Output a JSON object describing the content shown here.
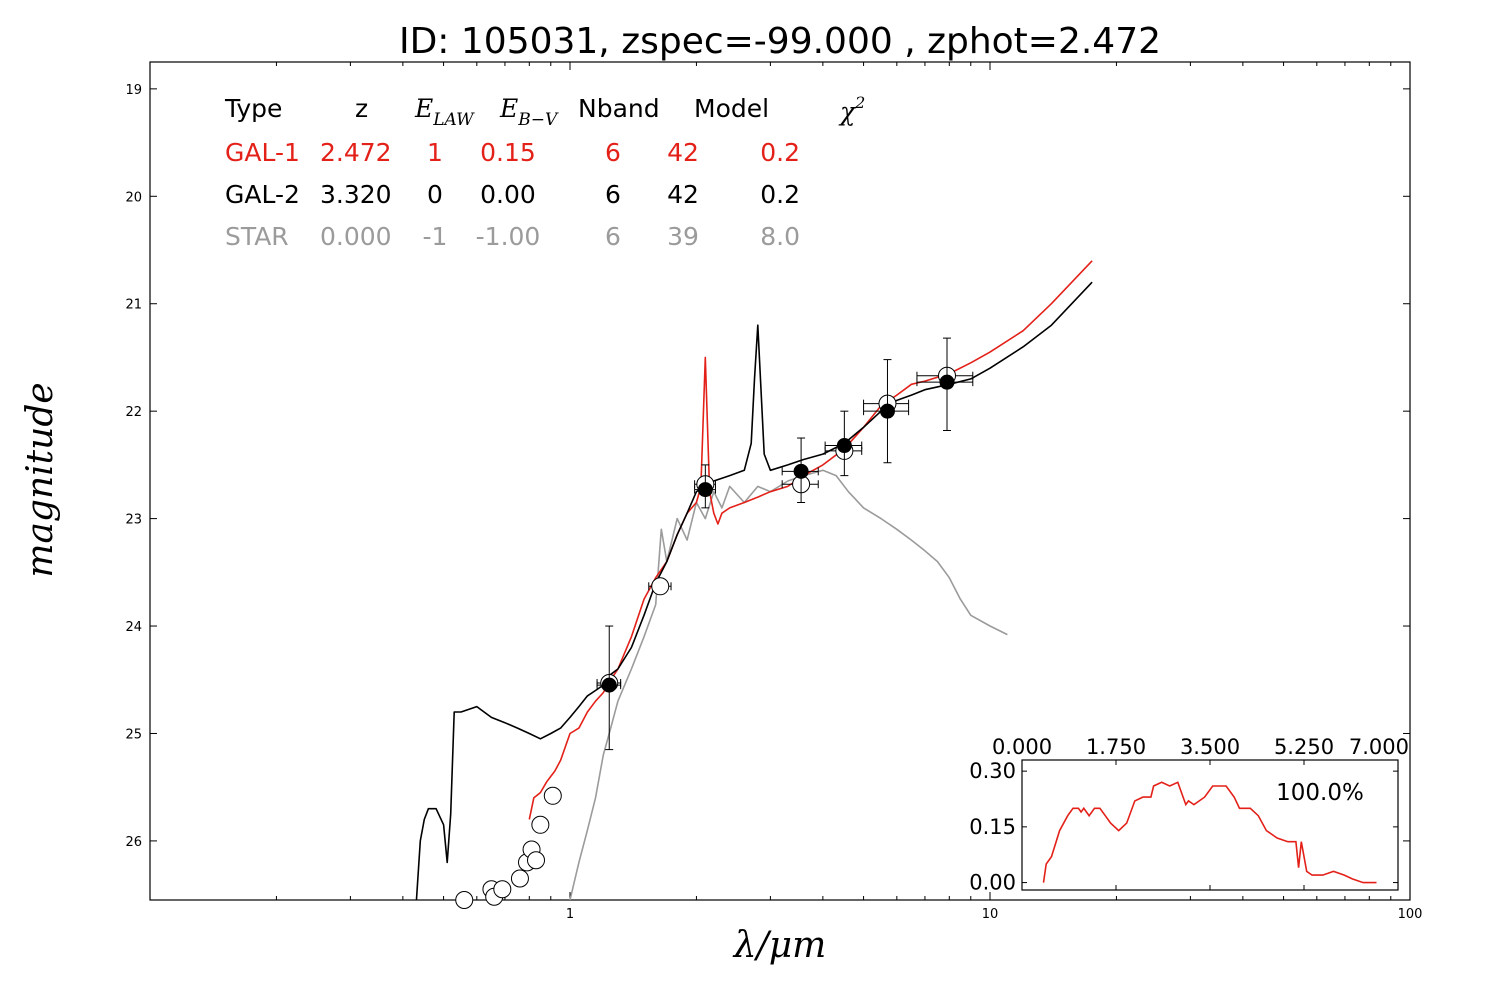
{
  "chart_data": {
    "type": "scatter",
    "title": "ID:  105031, zspec=-99.000 , zphot=2.472",
    "xlabel": "λ/μm",
    "ylabel": "magnitude",
    "x_scale": "log",
    "xlim": [
      0.1,
      100
    ],
    "ylim": [
      26.55,
      18.75
    ],
    "x_ticks": [
      "1",
      "10",
      "100"
    ],
    "y_ticks": [
      "19",
      "20",
      "21",
      "22",
      "23",
      "24",
      "25",
      "26"
    ],
    "legend_table": {
      "headers": [
        "Type",
        "z",
        "E_LAW",
        "E_B−V",
        "Nband",
        "Model",
        "χ²"
      ],
      "rows": [
        {
          "cells": [
            "GAL-1",
            "2.472",
            "1",
            "0.15",
            "6",
            "42",
            "0.2"
          ],
          "color": "#e32119"
        },
        {
          "cells": [
            "GAL-2",
            "3.320",
            "0",
            "0.00",
            "6",
            "42",
            "0.2"
          ],
          "color": "#000000"
        },
        {
          "cells": [
            "STAR",
            "0.000",
            "-1",
            "-1.00",
            "6",
            "39",
            "8.0"
          ],
          "color": "#9b9b9b"
        }
      ]
    },
    "series": [
      {
        "name": "GAL-1",
        "color": "#e32119",
        "kind": "line",
        "x": [
          0.8,
          0.82,
          0.85,
          0.88,
          0.9,
          0.92,
          0.95,
          1.0,
          1.05,
          1.1,
          1.15,
          1.2,
          1.25,
          1.3,
          1.4,
          1.5,
          1.6,
          1.7,
          1.8,
          1.9,
          2.0,
          2.05,
          2.1,
          2.15,
          2.2,
          2.25,
          2.3,
          2.4,
          2.6,
          2.8,
          3.0,
          3.3,
          3.6,
          4.0,
          4.5,
          5.0,
          5.5,
          6.0,
          6.5,
          7.0,
          8.0,
          9.0,
          10.0,
          12.0,
          14.0,
          17.5
        ],
        "y": [
          25.8,
          25.6,
          25.55,
          25.45,
          25.4,
          25.35,
          25.25,
          25.0,
          24.95,
          24.8,
          24.7,
          24.62,
          24.5,
          24.4,
          24.1,
          23.75,
          23.55,
          23.4,
          23.15,
          22.95,
          22.85,
          22.7,
          21.5,
          22.75,
          22.95,
          23.05,
          22.95,
          22.9,
          22.85,
          22.8,
          22.75,
          22.7,
          22.6,
          22.5,
          22.35,
          22.15,
          21.95,
          21.85,
          21.75,
          21.72,
          21.65,
          21.55,
          21.45,
          21.25,
          21.0,
          20.6
        ]
      },
      {
        "name": "GAL-2",
        "color": "#000000",
        "kind": "line",
        "x": [
          0.43,
          0.44,
          0.45,
          0.46,
          0.48,
          0.5,
          0.51,
          0.52,
          0.53,
          0.55,
          0.6,
          0.65,
          0.7,
          0.75,
          0.8,
          0.85,
          0.9,
          0.95,
          1.0,
          1.05,
          1.1,
          1.15,
          1.2,
          1.25,
          1.3,
          1.4,
          1.5,
          1.6,
          1.7,
          1.8,
          1.9,
          2.0,
          2.1,
          2.2,
          2.4,
          2.6,
          2.7,
          2.75,
          2.8,
          2.85,
          2.9,
          3.0,
          3.3,
          3.6,
          4.0,
          4.5,
          5.0,
          5.5,
          6.0,
          6.5,
          7.0,
          8.0,
          9.0,
          10.0,
          12.0,
          14.0,
          17.5
        ],
        "y": [
          26.6,
          26.0,
          25.8,
          25.7,
          25.7,
          25.85,
          26.2,
          25.75,
          24.8,
          24.8,
          24.75,
          24.85,
          24.9,
          24.95,
          25.0,
          25.05,
          25.0,
          24.95,
          24.85,
          24.75,
          24.65,
          24.6,
          24.55,
          24.45,
          24.4,
          24.2,
          23.9,
          23.6,
          23.4,
          23.15,
          22.95,
          22.75,
          22.7,
          22.65,
          22.6,
          22.55,
          22.3,
          21.7,
          21.2,
          21.8,
          22.4,
          22.55,
          22.5,
          22.45,
          22.4,
          22.3,
          22.15,
          22.0,
          21.9,
          21.85,
          21.8,
          21.75,
          21.7,
          21.6,
          21.4,
          21.2,
          20.8
        ]
      },
      {
        "name": "STAR",
        "color": "#9b9b9b",
        "kind": "line",
        "x": [
          1.0,
          1.05,
          1.1,
          1.15,
          1.2,
          1.25,
          1.3,
          1.4,
          1.5,
          1.6,
          1.65,
          1.7,
          1.8,
          1.9,
          2.0,
          2.1,
          2.2,
          2.3,
          2.4,
          2.6,
          2.8,
          3.0,
          3.3,
          3.6,
          4.0,
          4.3,
          4.6,
          5.0,
          5.5,
          6.0,
          6.5,
          7.0,
          7.5,
          8.0,
          8.5,
          9.0,
          10.0,
          11.0
        ],
        "y": [
          26.55,
          26.2,
          25.9,
          25.6,
          25.2,
          24.95,
          24.7,
          24.4,
          24.1,
          23.8,
          23.1,
          23.4,
          23.0,
          23.2,
          22.85,
          23.0,
          22.75,
          22.9,
          22.7,
          22.85,
          22.7,
          22.75,
          22.65,
          22.6,
          22.55,
          22.6,
          22.75,
          22.9,
          23.0,
          23.1,
          23.2,
          23.3,
          23.4,
          23.55,
          23.75,
          23.9,
          24.0,
          24.08
        ]
      },
      {
        "name": "observed-photometry",
        "kind": "filled-points",
        "points": [
          {
            "x": 1.24,
            "y": 24.55,
            "xerr": 0.08,
            "yerr_lo": 24.0,
            "yerr_hi": 25.15
          },
          {
            "x": 2.1,
            "y": 22.73,
            "xerr": 0.12,
            "yerr_lo": 22.5,
            "yerr_hi": 22.9
          },
          {
            "x": 3.55,
            "y": 22.56,
            "xerr": 0.35,
            "yerr_lo": 22.25,
            "yerr_hi": 22.85
          },
          {
            "x": 4.5,
            "y": 22.32,
            "xerr": 0.45,
            "yerr_lo": 22.0,
            "yerr_hi": 22.6
          },
          {
            "x": 5.7,
            "y": 22.0,
            "xerr": 0.7,
            "yerr_lo": 21.52,
            "yerr_hi": 22.48
          },
          {
            "x": 7.9,
            "y": 21.73,
            "xerr": 1.2,
            "yerr_lo": 21.32,
            "yerr_hi": 22.18
          }
        ]
      },
      {
        "name": "model-photometry",
        "kind": "open-points",
        "points": [
          {
            "x": 0.56,
            "y": 26.55,
            "xerr": 0
          },
          {
            "x": 0.65,
            "y": 26.45,
            "xerr": 0
          },
          {
            "x": 0.66,
            "y": 26.52,
            "xerr": 0
          },
          {
            "x": 0.69,
            "y": 26.45,
            "xerr": 0
          },
          {
            "x": 0.76,
            "y": 26.35,
            "xerr": 0
          },
          {
            "x": 0.79,
            "y": 26.2,
            "xerr": 0
          },
          {
            "x": 0.81,
            "y": 26.08,
            "xerr": 0
          },
          {
            "x": 0.83,
            "y": 26.18,
            "xerr": 0
          },
          {
            "x": 0.85,
            "y": 25.85,
            "xerr": 0.02
          },
          {
            "x": 0.91,
            "y": 25.58,
            "xerr": 0.02
          },
          {
            "x": 1.24,
            "y": 24.53,
            "xerr": 0.08
          },
          {
            "x": 1.64,
            "y": 23.63,
            "xerr": 0.1
          },
          {
            "x": 2.1,
            "y": 22.68,
            "xerr": 0.12
          },
          {
            "x": 3.55,
            "y": 22.68,
            "xerr": 0.35
          },
          {
            "x": 4.5,
            "y": 22.37,
            "xerr": 0.45
          },
          {
            "x": 5.7,
            "y": 21.93,
            "xerr": 0.7
          },
          {
            "x": 7.9,
            "y": 21.67,
            "xerr": 1.2
          }
        ]
      }
    ],
    "inset": {
      "type": "line",
      "label": "100.0%",
      "color": "#e32119",
      "xlim": [
        0,
        7
      ],
      "ylim": [
        -0.02,
        0.33
      ],
      "x_ticks": [
        "0.000",
        "1.750",
        "3.500",
        "5.250",
        "7.000"
      ],
      "y_ticks": [
        "0.00",
        "0.15",
        "0.30"
      ],
      "x": [
        0.4,
        0.45,
        0.55,
        0.7,
        0.85,
        0.95,
        1.05,
        1.1,
        1.15,
        1.25,
        1.35,
        1.45,
        1.55,
        1.65,
        1.8,
        1.95,
        2.1,
        2.25,
        2.4,
        2.45,
        2.6,
        2.75,
        2.9,
        3.05,
        3.1,
        3.2,
        3.4,
        3.55,
        3.65,
        3.8,
        3.95,
        4.05,
        4.25,
        4.4,
        4.55,
        4.75,
        4.95,
        5.1,
        5.15,
        5.2,
        5.3,
        5.4,
        5.6,
        5.8,
        6.0,
        6.15,
        6.35,
        6.6
      ],
      "y": [
        0.0,
        0.05,
        0.07,
        0.14,
        0.18,
        0.2,
        0.2,
        0.19,
        0.2,
        0.18,
        0.2,
        0.2,
        0.18,
        0.16,
        0.14,
        0.16,
        0.22,
        0.23,
        0.23,
        0.26,
        0.27,
        0.26,
        0.27,
        0.21,
        0.22,
        0.21,
        0.23,
        0.26,
        0.26,
        0.26,
        0.23,
        0.2,
        0.2,
        0.18,
        0.14,
        0.12,
        0.11,
        0.11,
        0.04,
        0.11,
        0.03,
        0.02,
        0.02,
        0.03,
        0.02,
        0.01,
        0.0,
        0.0
      ]
    }
  }
}
